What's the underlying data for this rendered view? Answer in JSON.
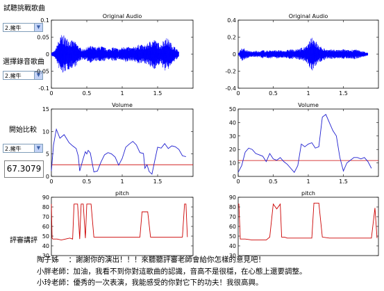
{
  "window": {
    "title": "試聽挑戰歌曲"
  },
  "controls": {
    "song_select_value": "2.擁牛",
    "record_label": "選擇錄音歌曲",
    "record_select_value": "2.擁牛",
    "compare_label": "開始比較",
    "compare_select_value": "2.擁牛",
    "score_value": "67.3079",
    "review_label": "評審講評"
  },
  "comments": [
    {
      "speaker": "陶子姊",
      "sep": "：",
      "text": "謝謝你的演出！！！來聽聽評審老師會給你怎樣的意見吧！"
    },
    {
      "speaker": "小胖老師",
      "sep": "：",
      "text": "加油，我看不到你對這歌曲的認識，音高不是很穩，在心態上還要調整。"
    },
    {
      "speaker": "小玲老師",
      "sep": "：",
      "text": "優秀的一次表演，我能感受的你對它下的功夫！我很高興。"
    }
  ],
  "chart_data": [
    {
      "type": "line",
      "title": "Original Audio",
      "panel": "left-top",
      "xlim": [
        0,
        2
      ],
      "ylim": [
        -0.1,
        0.1
      ],
      "xticks": [
        "0",
        "0.5",
        "1",
        "1.5"
      ],
      "yticks": [
        "-0.1",
        "-0.05",
        "0",
        "0.05",
        "0.1"
      ],
      "series": [
        {
          "envelope": [
            [
              0.0,
              0.005
            ],
            [
              0.05,
              0.01
            ],
            [
              0.1,
              0.04
            ],
            [
              0.15,
              0.06
            ],
            [
              0.2,
              0.05
            ],
            [
              0.25,
              0.045
            ],
            [
              0.3,
              0.04
            ],
            [
              0.35,
              0.035
            ],
            [
              0.4,
              0.02
            ],
            [
              0.45,
              0.015
            ],
            [
              0.5,
              0.02
            ],
            [
              0.55,
              0.025
            ],
            [
              0.6,
              0.022
            ],
            [
              0.65,
              0.02
            ],
            [
              0.7,
              0.025
            ],
            [
              0.75,
              0.02
            ],
            [
              0.8,
              0.015
            ],
            [
              0.85,
              0.02
            ],
            [
              0.9,
              0.02
            ],
            [
              0.95,
              0.015
            ],
            [
              1.0,
              0.02
            ],
            [
              1.05,
              0.025
            ],
            [
              1.1,
              0.02
            ],
            [
              1.15,
              0.02
            ],
            [
              1.2,
              0.025
            ],
            [
              1.25,
              0.03
            ],
            [
              1.3,
              0.025
            ],
            [
              1.35,
              0.03
            ],
            [
              1.4,
              0.04
            ],
            [
              1.45,
              0.045
            ],
            [
              1.5,
              0.035
            ],
            [
              1.55,
              0.03
            ],
            [
              1.6,
              0.05
            ],
            [
              1.65,
              0.045
            ],
            [
              1.7,
              0.03
            ],
            [
              1.75,
              0.02
            ],
            [
              1.8,
              0.008
            ]
          ]
        }
      ]
    },
    {
      "type": "line",
      "title": "Original Audio",
      "panel": "right-top",
      "xlim": [
        0,
        2
      ],
      "ylim": [
        -0.4,
        0.4
      ],
      "xticks": [
        "0",
        "0.5",
        "1",
        "1.5"
      ],
      "yticks": [
        "-0.4",
        "-0.2",
        "0",
        "0.2",
        "0.4"
      ],
      "series": [
        {
          "envelope": [
            [
              0.0,
              0.005
            ],
            [
              0.05,
              0.08
            ],
            [
              0.1,
              0.06
            ],
            [
              0.15,
              0.04
            ],
            [
              0.2,
              0.03
            ],
            [
              0.25,
              0.04
            ],
            [
              0.3,
              0.03
            ],
            [
              0.35,
              0.05
            ],
            [
              0.4,
              0.04
            ],
            [
              0.45,
              0.05
            ],
            [
              0.5,
              0.045
            ],
            [
              0.55,
              0.05
            ],
            [
              0.6,
              0.045
            ],
            [
              0.65,
              0.04
            ],
            [
              0.7,
              0.05
            ],
            [
              0.75,
              0.06
            ],
            [
              0.8,
              0.05
            ],
            [
              0.85,
              0.06
            ],
            [
              0.9,
              0.08
            ],
            [
              0.95,
              0.08
            ],
            [
              1.0,
              0.12
            ],
            [
              1.05,
              0.22
            ],
            [
              1.1,
              0.17
            ],
            [
              1.15,
              0.1
            ],
            [
              1.2,
              0.08
            ],
            [
              1.25,
              0.06
            ],
            [
              1.3,
              0.05
            ],
            [
              1.35,
              0.06
            ],
            [
              1.4,
              0.05
            ],
            [
              1.45,
              0.05
            ],
            [
              1.5,
              0.06
            ],
            [
              1.55,
              0.05
            ],
            [
              1.6,
              0.05
            ],
            [
              1.65,
              0.06
            ],
            [
              1.7,
              0.05
            ],
            [
              1.75,
              0.04
            ],
            [
              1.8,
              0.03
            ],
            [
              1.85,
              0.015
            ]
          ]
        }
      ]
    },
    {
      "type": "line",
      "title": "Volume",
      "panel": "left-middle",
      "xlim": [
        0,
        2
      ],
      "ylim": [
        0,
        15
      ],
      "xticks": [
        "0",
        "0.5",
        "1",
        "1.5"
      ],
      "yticks": [
        "0",
        "5",
        "10",
        "15"
      ],
      "threshold": 2.6,
      "series": [
        {
          "x": [
            0.0,
            0.03,
            0.07,
            0.12,
            0.18,
            0.25,
            0.3,
            0.35,
            0.38,
            0.4,
            0.45,
            0.48,
            0.5,
            0.52,
            0.55,
            0.6,
            0.65,
            0.7,
            0.75,
            0.8,
            0.85,
            0.9,
            0.95,
            1.0,
            1.05,
            1.1,
            1.15,
            1.2,
            1.25,
            1.3,
            1.32,
            1.35,
            1.38,
            1.42,
            1.45,
            1.5,
            1.55,
            1.6,
            1.65,
            1.7,
            1.75,
            1.8,
            1.85,
            1.9
          ],
          "y": [
            1.2,
            7.0,
            10.5,
            8.5,
            9.3,
            7.5,
            6.8,
            6.2,
            4.5,
            1.2,
            4.0,
            5.5,
            5.0,
            5.8,
            5.2,
            1.0,
            1.2,
            3.2,
            4.8,
            5.3,
            5.0,
            4.3,
            2.5,
            4.0,
            6.5,
            7.2,
            7.8,
            7.0,
            5.3,
            5.1,
            1.8,
            2.6,
            1.1,
            0.5,
            2.8,
            6.5,
            6.3,
            7.3,
            6.2,
            6.8,
            6.6,
            6.0,
            4.6,
            4.4
          ]
        }
      ]
    },
    {
      "type": "line",
      "title": "Volume",
      "panel": "right-middle",
      "xlim": [
        0,
        2
      ],
      "ylim": [
        0,
        50
      ],
      "xticks": [
        "0",
        "0.5",
        "1",
        "1.5"
      ],
      "yticks": [
        "0",
        "10",
        "20",
        "30",
        "40",
        "50"
      ],
      "threshold": 11.8,
      "series": [
        {
          "x": [
            0.0,
            0.05,
            0.1,
            0.15,
            0.2,
            0.25,
            0.3,
            0.35,
            0.4,
            0.45,
            0.5,
            0.55,
            0.6,
            0.65,
            0.7,
            0.75,
            0.8,
            0.85,
            0.9,
            0.95,
            1.0,
            1.05,
            1.1,
            1.15,
            1.2,
            1.25,
            1.3,
            1.35,
            1.4,
            1.45,
            1.5,
            1.55,
            1.6,
            1.65,
            1.7,
            1.75,
            1.8,
            1.85,
            1.9
          ],
          "y": [
            3,
            8,
            18,
            21,
            20,
            17,
            16,
            15,
            11,
            17,
            13,
            12,
            14,
            11,
            9,
            6,
            3,
            8,
            24,
            22,
            24,
            25,
            21,
            22,
            44,
            46,
            40,
            34,
            30,
            14,
            4,
            10,
            12,
            14,
            14,
            13,
            14,
            11,
            6
          ]
        }
      ]
    },
    {
      "type": "line",
      "title": "pitch",
      "panel": "left-bottom",
      "xlim": [
        0,
        2
      ],
      "ylim": [
        30,
        90
      ],
      "yticks": [
        "30",
        "40",
        "50",
        "60",
        "70",
        "80",
        "90"
      ],
      "series": [
        {
          "x": [
            0.0,
            0.01,
            0.02,
            0.08,
            0.14,
            0.2,
            0.26,
            0.3,
            0.32,
            0.34,
            0.37,
            0.4,
            0.42,
            0.45,
            0.48,
            0.5,
            0.52,
            0.56,
            0.6,
            0.7,
            0.8,
            0.9,
            1.0,
            1.1,
            1.2,
            1.25,
            1.28,
            1.33,
            1.36,
            1.4,
            1.5,
            1.6,
            1.7,
            1.8,
            1.85,
            1.88,
            1.9,
            1.92
          ],
          "y": [
            83,
            48,
            47,
            47,
            46,
            47,
            48,
            47,
            83,
            83,
            83,
            47,
            83,
            83,
            48,
            83,
            83,
            83,
            49,
            49,
            49,
            49,
            49,
            49,
            49,
            49,
            75,
            75,
            75,
            49,
            49,
            49,
            49,
            49,
            49,
            83,
            83,
            49
          ]
        }
      ]
    },
    {
      "type": "line",
      "title": "pitch",
      "panel": "right-bottom",
      "xlim": [
        0,
        2
      ],
      "ylim": [
        30,
        90
      ],
      "yticks": [
        "30",
        "40",
        "50",
        "60",
        "70",
        "80",
        "90"
      ],
      "series": [
        {
          "x": [
            0.0,
            0.01,
            0.03,
            0.1,
            0.2,
            0.3,
            0.4,
            0.45,
            0.5,
            0.55,
            0.6,
            0.62,
            0.66,
            0.7,
            0.8,
            0.9,
            1.0,
            1.05,
            1.08,
            1.15,
            1.2,
            1.3,
            1.4,
            1.5,
            1.6,
            1.7,
            1.8,
            1.85,
            1.9,
            1.95,
            1.98
          ],
          "y": [
            83,
            83,
            47,
            47,
            46,
            46,
            46,
            49,
            83,
            78,
            83,
            49,
            49,
            48,
            48,
            48,
            48,
            48,
            84,
            84,
            49,
            48,
            48,
            48,
            48,
            48,
            48,
            48,
            48,
            79,
            48
          ]
        }
      ]
    }
  ]
}
